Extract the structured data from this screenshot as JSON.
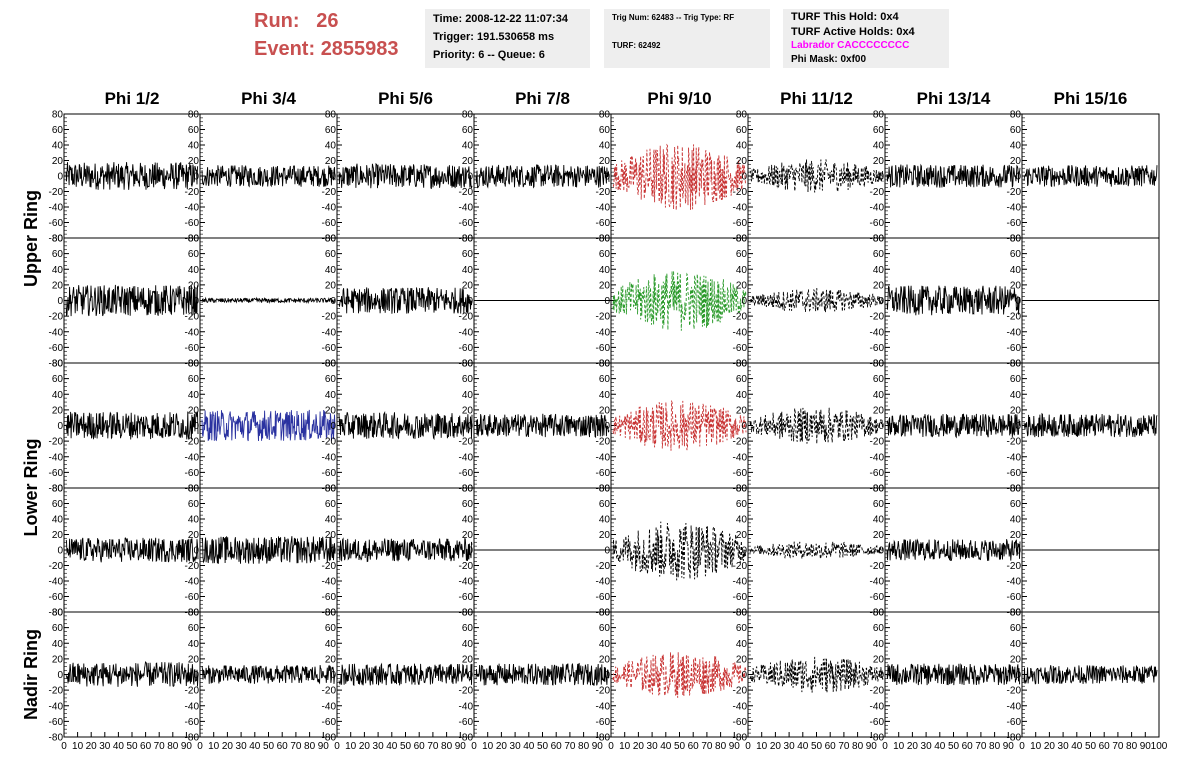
{
  "header": {
    "run_label": "Run:",
    "run_value": "26",
    "event_label": "Event:",
    "event_value": "2855983",
    "run_color": "#c85050"
  },
  "info_time": {
    "time": "Time: 2008-12-22 11:07:34",
    "trigger": "Trigger: 191.530658 ms",
    "priority": "Priority: 6 -- Queue: 6"
  },
  "info_trig": {
    "trig": "Trig Num: 62483 -- Trig Type: RF",
    "turf": "TURF: 62492"
  },
  "info_turf": {
    "this_hold": "TURF This Hold: 0x4",
    "active_holds": "TURF Active Holds: 0x4",
    "labrador": "Labrador CACCCCCCCC",
    "phi_mask": "Phi Mask: 0xf00",
    "labrador_color": "#ff00ff"
  },
  "columns": [
    "Phi 1/2",
    "Phi 3/4",
    "Phi 5/6",
    "Phi 7/8",
    "Phi 9/10",
    "Phi 11/12",
    "Phi 13/14",
    "Phi 15/16"
  ],
  "ring_labels": [
    "Upper Ring",
    "Lower Ring",
    "Nadir Ring"
  ],
  "chart_data": {
    "type": "line",
    "xlim": [
      0,
      100
    ],
    "ylim": [
      -80,
      80
    ],
    "y_ticks": [
      -80,
      -60,
      -40,
      -20,
      0,
      20,
      40,
      60,
      80
    ],
    "y_tick_labels": [
      "-80",
      "-60",
      "-40",
      "-20",
      "0",
      "20",
      "40",
      "60",
      "80"
    ],
    "x_tick_labels": [
      "0",
      "10",
      "20",
      "30",
      "40",
      "50",
      "60",
      "70",
      "80",
      "90",
      "100"
    ],
    "grid": false,
    "row_style": [
      [
        "solid",
        "solid",
        "solid",
        "solid",
        "dashed",
        "dashed",
        "solid",
        "solid"
      ],
      [
        "solid",
        "solid",
        "solid",
        "flat",
        "dashed",
        "dashed",
        "solid",
        "flat"
      ],
      [
        "solid",
        "solid",
        "solid",
        "solid",
        "dashed",
        "dashed",
        "solid",
        "solid"
      ],
      [
        "solid",
        "solid",
        "solid",
        "flat",
        "dashed",
        "dashed",
        "solid",
        "flat"
      ],
      [
        "solid",
        "solid",
        "solid",
        "solid",
        "dashed",
        "dashed",
        "solid",
        "solid"
      ]
    ],
    "row_colors": [
      [
        "#000000",
        "#000000",
        "#000000",
        "#000000",
        "#c83232",
        "#000000",
        "#000000",
        "#000000"
      ],
      [
        "#000000",
        "#000000",
        "#000000",
        "#000000",
        "#2a9a2a",
        "#000000",
        "#000000",
        "#000000"
      ],
      [
        "#000000",
        "#2a32a0",
        "#000000",
        "#000000",
        "#c83232",
        "#000000",
        "#000000",
        "#000000"
      ],
      [
        "#000000",
        "#000000",
        "#000000",
        "#000000",
        "#000000",
        "#000000",
        "#000000",
        "#000000"
      ],
      [
        "#000000",
        "#000000",
        "#000000",
        "#000000",
        "#c83232",
        "#000000",
        "#000000",
        "#000000"
      ]
    ],
    "amplitude": [
      [
        18,
        14,
        16,
        15,
        45,
        22,
        15,
        14
      ],
      [
        20,
        3,
        17,
        0,
        40,
        16,
        19,
        0
      ],
      [
        18,
        20,
        17,
        15,
        33,
        24,
        15,
        15
      ],
      [
        16,
        18,
        15,
        0,
        40,
        12,
        14,
        0
      ],
      [
        16,
        12,
        14,
        14,
        30,
        24,
        14,
        12
      ]
    ]
  }
}
